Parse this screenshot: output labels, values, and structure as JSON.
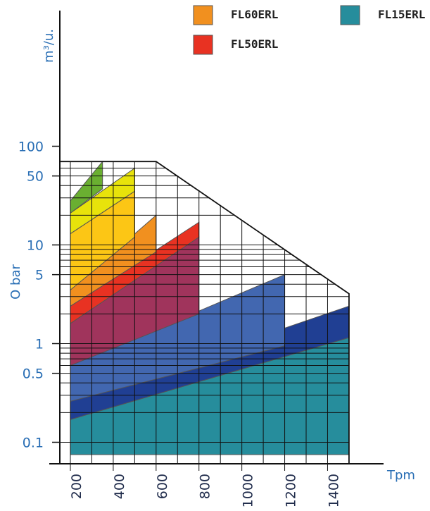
{
  "chart_data": {
    "type": "area",
    "title": "",
    "xlabel": "Tpm",
    "ylabel": "m³/u.",
    "ylabel_secondary": "O bar",
    "x_ticks": [
      "200",
      "400",
      "600",
      "800",
      "1000",
      "1200",
      "1400"
    ],
    "y_ticks": [
      "100",
      "50",
      "10",
      "5",
      "1",
      "0.5",
      "0.1"
    ],
    "xlim": [
      110,
      1560
    ],
    "y_scale": "log",
    "ylim": [
      0.06,
      110
    ],
    "grid": "envelope-only",
    "legend_position": "top",
    "legend": [
      {
        "name": "FL60ERL",
        "color": "#f1901f"
      },
      {
        "name": "FL15ERL",
        "color": "#268d9c"
      },
      {
        "name": "FL50ERL",
        "color": "#e83222"
      }
    ],
    "envelope": [
      [
        200,
        70
      ],
      [
        600,
        70
      ],
      [
        1500,
        3.2
      ],
      [
        1500,
        0.075
      ]
    ],
    "series": [
      {
        "color": "#268d9c",
        "x": [
          200,
          1500
        ],
        "y_low": [
          0.075,
          0.075
        ],
        "y_high": [
          0.17,
          1.15
        ]
      },
      {
        "color": "#203f93",
        "x": [
          200,
          1500
        ],
        "y_low": [
          0.17,
          1.15
        ],
        "y_high": [
          0.26,
          2.4
        ]
      },
      {
        "color": "#4267b0",
        "x": [
          200,
          1200
        ],
        "y_low": [
          0.26,
          0.95
        ],
        "y_high": [
          0.6,
          5.0
        ],
        "cut_top": 1.1
      },
      {
        "color": "#a0345c",
        "x": [
          200,
          800
        ],
        "y_low": [
          0.6,
          2.0
        ],
        "y_high": [
          1.6,
          12
        ]
      },
      {
        "color": "#e83222",
        "x": [
          200,
          800
        ],
        "y_low": [
          1.6,
          12
        ],
        "y_high": [
          2.4,
          17
        ]
      },
      {
        "color": "#f1901f",
        "x": [
          200,
          600
        ],
        "y_low": [
          2.4,
          8.5
        ],
        "y_high": [
          3.5,
          20
        ]
      },
      {
        "color": "#fcc615",
        "x": [
          200,
          500
        ],
        "y_low": [
          3.5,
          12
        ],
        "y_high": [
          13,
          35
        ]
      },
      {
        "color": "#e8e30b",
        "x": [
          200,
          500
        ],
        "y_low": [
          13,
          35
        ],
        "y_high": [
          21,
          60
        ]
      },
      {
        "color": "#6aaf31",
        "x": [
          200,
          350
        ],
        "y_low": [
          21,
          37
        ],
        "y_high": [
          28,
          70
        ]
      }
    ]
  }
}
